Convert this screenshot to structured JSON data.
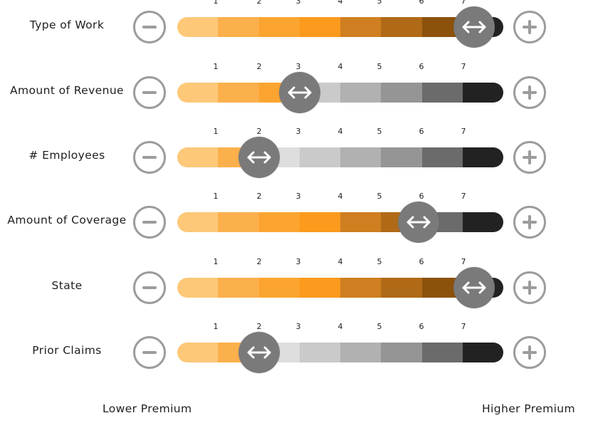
{
  "colors": {
    "orange_scale": [
      "#fdc878",
      "#fbb04c",
      "#fba530",
      "#fb9a1d",
      "#cf7f20",
      "#b06a17",
      "#8c520c"
    ],
    "gray_scale": [
      "#f1f1f1",
      "#dedede",
      "#cacaca",
      "#b1b1b1",
      "#959595",
      "#6b6b6b",
      "#222222"
    ],
    "button_gray": "#9c9c9c",
    "thumb_gray": "#7a7a7a"
  },
  "tick_labels": [
    "1",
    "2",
    "3",
    "4",
    "5",
    "6",
    "7"
  ],
  "factors": [
    {
      "label": "Type of Work",
      "value": 7
    },
    {
      "label": "Amount of Revenue",
      "value": 3
    },
    {
      "label": "# Employees",
      "value": 2
    },
    {
      "label": "Amount of Coverage",
      "value": 6
    },
    {
      "label": "State",
      "value": 7
    },
    {
      "label": "Prior Claims",
      "value": 2
    }
  ],
  "footer": {
    "lower": "Lower Premium",
    "higher": "Higher Premium"
  },
  "icons": {
    "decrease": "minus-circle-icon",
    "increase": "plus-circle-icon",
    "drag": "double-arrow-icon"
  }
}
